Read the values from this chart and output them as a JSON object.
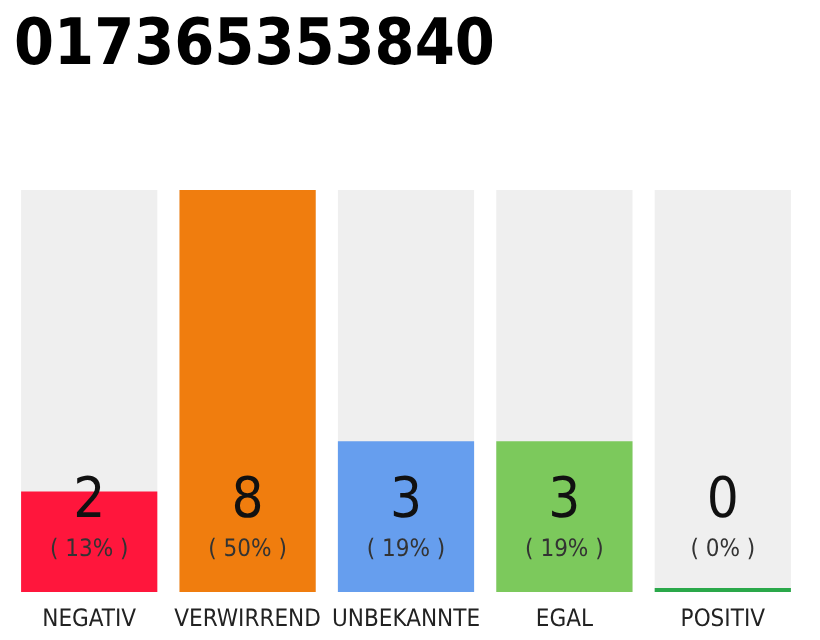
{
  "chart_data": {
    "type": "bar",
    "title": "017365353840",
    "categories": [
      "NEGATIV",
      "VERWIRREND",
      "UNBEKANNTE",
      "EGAL",
      "POSITIV"
    ],
    "values": [
      2,
      8,
      3,
      3,
      0
    ],
    "colors": [
      "#ff163c",
      "#f07d0e",
      "#669eee",
      "#7cc95c",
      "#2aa84a"
    ],
    "value_labels": [
      "2\n( 13% )",
      "8\n( 50% )",
      "3\n( 19% )",
      "3\n( 19% )",
      "0\n( 0% )"
    ]
  }
}
